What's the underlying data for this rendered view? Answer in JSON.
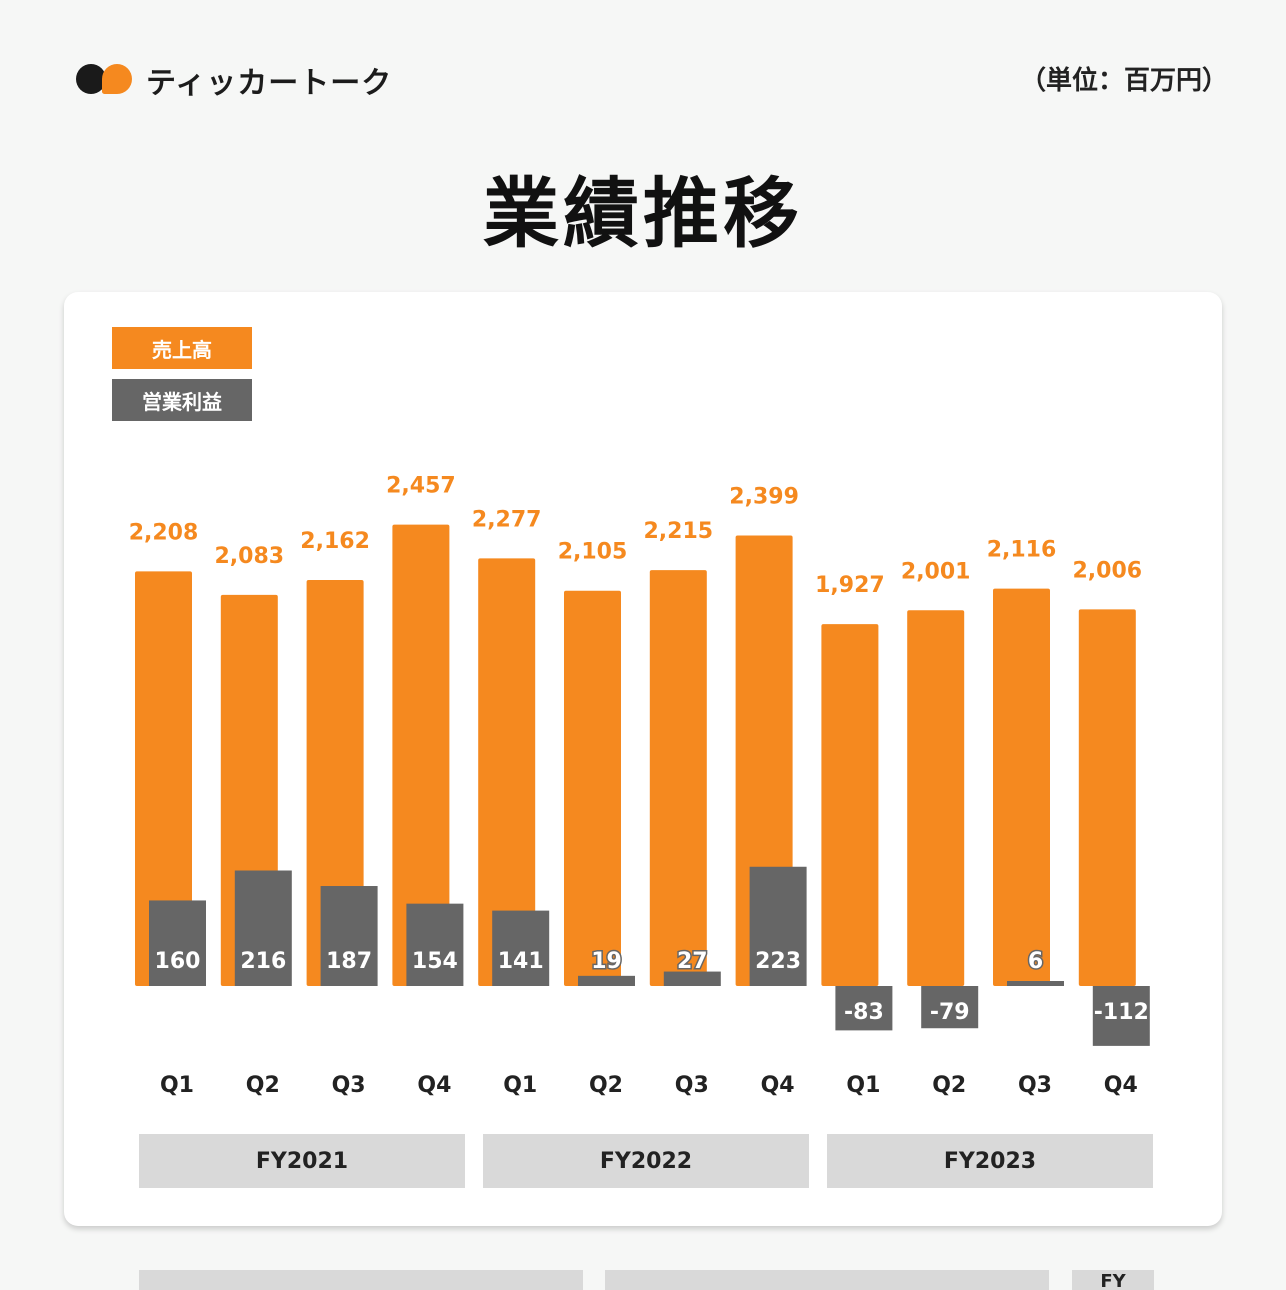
{
  "header": {
    "brand": "ティッカートーク",
    "unit": "（単位：百万円）"
  },
  "title": "業績推移",
  "colors": {
    "sales": "#f5891f",
    "operating_profit": "#666666",
    "fy_box": "#d9d9d9"
  },
  "chart_data": {
    "type": "bar",
    "title": "業績推移",
    "unit": "百万円",
    "legend": [
      "売上高",
      "営業利益"
    ],
    "legend_position": "top-left",
    "categories": [
      "Q1",
      "Q2",
      "Q3",
      "Q4",
      "Q1",
      "Q2",
      "Q3",
      "Q4",
      "Q1",
      "Q2",
      "Q3",
      "Q4"
    ],
    "groups": [
      {
        "label": "FY2021",
        "quarters": [
          0,
          1,
          2,
          3
        ]
      },
      {
        "label": "FY2022",
        "quarters": [
          4,
          5,
          6,
          7
        ]
      },
      {
        "label": "FY2023",
        "quarters": [
          8,
          9,
          10,
          11
        ]
      }
    ],
    "series": [
      {
        "name": "売上高",
        "values": [
          2208,
          2083,
          2162,
          2457,
          2277,
          2105,
          2215,
          2399,
          1927,
          2001,
          2116,
          2006
        ],
        "labels": [
          "2,208",
          "2,083",
          "2,162",
          "2,457",
          "2,277",
          "2,105",
          "2,215",
          "2,399",
          "1,927",
          "2,001",
          "2,116",
          "2,006"
        ]
      },
      {
        "name": "営業利益",
        "values": [
          160,
          216,
          187,
          154,
          141,
          19,
          27,
          223,
          -83,
          -79,
          6,
          -112
        ],
        "labels": [
          "160",
          "216",
          "187",
          "154",
          "141",
          "19",
          "27",
          "223",
          "-83",
          "-79",
          "6",
          "-112"
        ]
      }
    ],
    "grid": false
  },
  "footer": {
    "partial_label": "FY"
  }
}
